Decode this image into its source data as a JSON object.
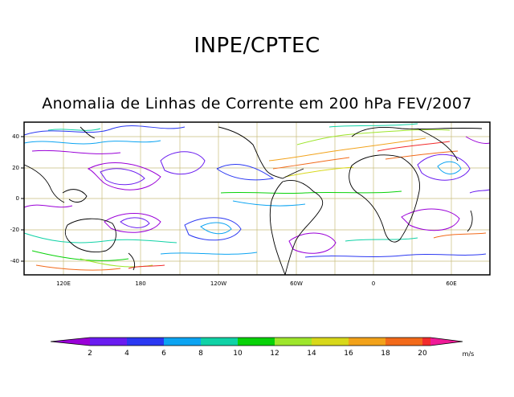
{
  "header": {
    "agency": "INPE/CPTEC"
  },
  "map": {
    "title": "Anomalia de Linhas de Corrente em 200 hPa FEV/2007",
    "lat_labels": [
      "40",
      "20",
      "0",
      "-20",
      "-40"
    ],
    "lon_labels": [
      "120E",
      "180",
      "120W",
      "60W",
      "0",
      "60E"
    ]
  },
  "colorbar": {
    "ticks": [
      "2",
      "4",
      "6",
      "8",
      "10",
      "12",
      "14",
      "16",
      "18",
      "20"
    ],
    "unit": "m/s",
    "colors": [
      "#9a00d8",
      "#6a1cf0",
      "#2b38f2",
      "#0ca4f2",
      "#10d2a6",
      "#08d208",
      "#9ee62c",
      "#d8d81a",
      "#f2a21a",
      "#f26a1a",
      "#f22b2b",
      "#f01a98"
    ]
  }
}
